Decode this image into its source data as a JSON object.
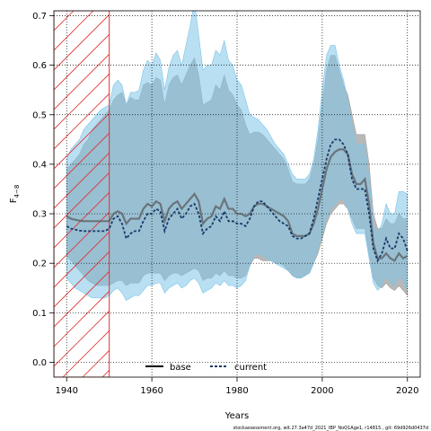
{
  "chart_data": {
    "type": "line",
    "xlabel": "Years",
    "ylabel": "F",
    "ylabel_subscript": "4−8",
    "xlim": [
      1937,
      2023
    ],
    "ylim": [
      -0.03,
      0.71
    ],
    "x_ticks": [
      1940,
      1960,
      1980,
      2000,
      2020
    ],
    "y_ticks": [
      0.0,
      0.1,
      0.2,
      0.3,
      0.4,
      0.5,
      0.6,
      0.7
    ],
    "x_tick_labels": [
      "1940",
      "1960",
      "1980",
      "2000",
      "2020"
    ],
    "y_tick_labels": [
      "0.0",
      "0.1",
      "0.2",
      "0.3",
      "0.4",
      "0.5",
      "0.6",
      "0.7"
    ],
    "grid": true,
    "hatched_region": {
      "x_start": 1937,
      "x_end": 1950,
      "color": "#e03030"
    },
    "legend": {
      "position": "bottom-center",
      "entries": [
        "base",
        "current"
      ]
    },
    "footer": "stockassessment.org, wit.27.3a47d_2021_IBP_NoQ1Age1, r14815 , git: 69d926d0437d",
    "x": [
      1940,
      1941,
      1942,
      1943,
      1944,
      1945,
      1946,
      1947,
      1948,
      1949,
      1950,
      1951,
      1952,
      1953,
      1954,
      1955,
      1956,
      1957,
      1958,
      1959,
      1960,
      1961,
      1962,
      1963,
      1964,
      1965,
      1966,
      1967,
      1968,
      1969,
      1970,
      1971,
      1972,
      1973,
      1974,
      1975,
      1976,
      1977,
      1978,
      1979,
      1980,
      1981,
      1982,
      1983,
      1984,
      1985,
      1986,
      1987,
      1988,
      1989,
      1990,
      1991,
      1992,
      1993,
      1994,
      1995,
      1996,
      1997,
      1998,
      1999,
      2000,
      2001,
      2002,
      2003,
      2004,
      2005,
      2006,
      2007,
      2008,
      2009,
      2010,
      2011,
      2012,
      2013,
      2014,
      2015,
      2016,
      2017,
      2018,
      2019,
      2020
    ],
    "series": [
      {
        "name": "base",
        "color": "#555555",
        "band_color": "#a0a0a0",
        "values": [
          0.295,
          0.29,
          0.288,
          0.286,
          0.285,
          0.285,
          0.285,
          0.285,
          0.285,
          0.285,
          0.285,
          0.3,
          0.305,
          0.3,
          0.28,
          0.29,
          0.29,
          0.29,
          0.31,
          0.32,
          0.315,
          0.325,
          0.32,
          0.285,
          0.31,
          0.32,
          0.325,
          0.31,
          0.32,
          0.33,
          0.34,
          0.325,
          0.28,
          0.29,
          0.295,
          0.315,
          0.31,
          0.33,
          0.31,
          0.31,
          0.3,
          0.3,
          0.295,
          0.3,
          0.315,
          0.32,
          0.32,
          0.315,
          0.31,
          0.305,
          0.3,
          0.295,
          0.285,
          0.26,
          0.255,
          0.255,
          0.255,
          0.26,
          0.28,
          0.31,
          0.35,
          0.39,
          0.415,
          0.425,
          0.43,
          0.43,
          0.42,
          0.38,
          0.36,
          0.36,
          0.37,
          0.32,
          0.24,
          0.21,
          0.21,
          0.22,
          0.21,
          0.205,
          0.22,
          0.21,
          0.215
        ],
        "lower": [
          0.215,
          0.205,
          0.195,
          0.185,
          0.175,
          0.165,
          0.16,
          0.155,
          0.155,
          0.155,
          0.155,
          0.16,
          0.165,
          0.165,
          0.155,
          0.16,
          0.16,
          0.16,
          0.175,
          0.18,
          0.18,
          0.18,
          0.18,
          0.165,
          0.175,
          0.18,
          0.18,
          0.175,
          0.18,
          0.185,
          0.19,
          0.185,
          0.165,
          0.17,
          0.17,
          0.18,
          0.175,
          0.185,
          0.175,
          0.175,
          0.17,
          0.17,
          0.175,
          0.195,
          0.21,
          0.21,
          0.205,
          0.205,
          0.205,
          0.2,
          0.2,
          0.195,
          0.185,
          0.175,
          0.17,
          0.17,
          0.175,
          0.18,
          0.2,
          0.22,
          0.25,
          0.28,
          0.3,
          0.31,
          0.32,
          0.32,
          0.31,
          0.29,
          0.27,
          0.27,
          0.27,
          0.22,
          0.17,
          0.155,
          0.15,
          0.16,
          0.15,
          0.145,
          0.155,
          0.145,
          0.135
        ],
        "upper": [
          0.39,
          0.4,
          0.41,
          0.42,
          0.44,
          0.45,
          0.47,
          0.48,
          0.49,
          0.5,
          0.51,
          0.53,
          0.54,
          0.545,
          0.52,
          0.535,
          0.53,
          0.53,
          0.56,
          0.565,
          0.56,
          0.575,
          0.57,
          0.52,
          0.56,
          0.575,
          0.58,
          0.56,
          0.58,
          0.6,
          0.615,
          0.58,
          0.52,
          0.525,
          0.53,
          0.56,
          0.55,
          0.58,
          0.55,
          0.54,
          0.52,
          0.51,
          0.48,
          0.46,
          0.465,
          0.465,
          0.46,
          0.45,
          0.44,
          0.43,
          0.42,
          0.41,
          0.39,
          0.365,
          0.36,
          0.36,
          0.36,
          0.37,
          0.4,
          0.45,
          0.52,
          0.59,
          0.62,
          0.62,
          0.59,
          0.56,
          0.54,
          0.5,
          0.46,
          0.46,
          0.46,
          0.4,
          0.3,
          0.27,
          0.27,
          0.29,
          0.28,
          0.28,
          0.3,
          0.29,
          0.29
        ]
      },
      {
        "name": "current",
        "color": "#1a3a6a",
        "band_color": "#7ec4e8",
        "values": [
          0.275,
          0.27,
          0.268,
          0.266,
          0.265,
          0.265,
          0.265,
          0.265,
          0.265,
          0.265,
          0.27,
          0.29,
          0.295,
          0.28,
          0.25,
          0.26,
          0.265,
          0.265,
          0.285,
          0.3,
          0.3,
          0.31,
          0.305,
          0.265,
          0.29,
          0.3,
          0.31,
          0.29,
          0.3,
          0.315,
          0.32,
          0.3,
          0.26,
          0.27,
          0.275,
          0.295,
          0.285,
          0.305,
          0.285,
          0.285,
          0.28,
          0.28,
          0.275,
          0.29,
          0.315,
          0.325,
          0.325,
          0.315,
          0.305,
          0.295,
          0.285,
          0.28,
          0.275,
          0.255,
          0.25,
          0.25,
          0.255,
          0.26,
          0.29,
          0.33,
          0.37,
          0.41,
          0.44,
          0.45,
          0.45,
          0.44,
          0.42,
          0.37,
          0.35,
          0.35,
          0.35,
          0.3,
          0.23,
          0.205,
          0.22,
          0.25,
          0.23,
          0.23,
          0.26,
          0.25,
          0.225
        ],
        "lower": [
          0.17,
          0.16,
          0.15,
          0.145,
          0.14,
          0.135,
          0.13,
          0.13,
          0.13,
          0.13,
          0.135,
          0.145,
          0.15,
          0.14,
          0.125,
          0.13,
          0.135,
          0.135,
          0.145,
          0.155,
          0.155,
          0.16,
          0.16,
          0.14,
          0.15,
          0.155,
          0.16,
          0.15,
          0.155,
          0.165,
          0.17,
          0.16,
          0.14,
          0.145,
          0.15,
          0.16,
          0.155,
          0.165,
          0.155,
          0.155,
          0.15,
          0.155,
          0.165,
          0.195,
          0.215,
          0.22,
          0.215,
          0.21,
          0.205,
          0.2,
          0.195,
          0.19,
          0.185,
          0.175,
          0.17,
          0.17,
          0.175,
          0.18,
          0.2,
          0.23,
          0.26,
          0.29,
          0.31,
          0.32,
          0.33,
          0.33,
          0.31,
          0.28,
          0.26,
          0.26,
          0.26,
          0.21,
          0.16,
          0.145,
          0.155,
          0.175,
          0.16,
          0.155,
          0.175,
          0.165,
          0.145
        ],
        "upper": [
          0.41,
          0.43,
          0.44,
          0.45,
          0.47,
          0.48,
          0.49,
          0.5,
          0.51,
          0.515,
          0.52,
          0.56,
          0.57,
          0.56,
          0.52,
          0.545,
          0.545,
          0.55,
          0.59,
          0.61,
          0.6,
          0.625,
          0.61,
          0.55,
          0.595,
          0.62,
          0.63,
          0.6,
          0.64,
          0.68,
          0.73,
          0.66,
          0.59,
          0.6,
          0.6,
          0.63,
          0.62,
          0.65,
          0.61,
          0.6,
          0.57,
          0.56,
          0.53,
          0.5,
          0.495,
          0.49,
          0.48,
          0.47,
          0.455,
          0.44,
          0.43,
          0.42,
          0.4,
          0.38,
          0.37,
          0.37,
          0.37,
          0.38,
          0.41,
          0.47,
          0.55,
          0.62,
          0.64,
          0.64,
          0.6,
          0.57,
          0.53,
          0.48,
          0.44,
          0.44,
          0.44,
          0.37,
          0.28,
          0.26,
          0.28,
          0.32,
          0.3,
          0.3,
          0.345,
          0.345,
          0.34
        ]
      }
    ]
  }
}
